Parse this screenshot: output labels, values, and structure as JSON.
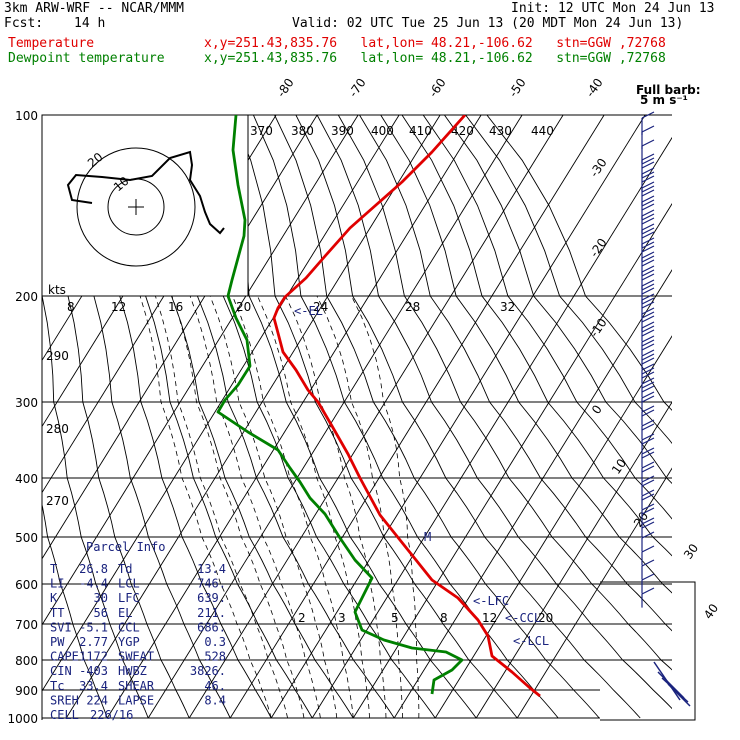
{
  "header": {
    "model": "3km ARW-WRF -- NCAR/MMM",
    "init": "Init: 12 UTC Mon 24 Jun 13",
    "fcst_label": "Fcst:",
    "fcst_value": "14 h",
    "valid": "Valid: 02 UTC Tue 25 Jun 13 (20 MDT Mon 24 Jun 13)",
    "temp_label": "Temperature",
    "dew_label": "Dewpoint temperature",
    "coords": "x,y=251.43,835.76   lat,lon= 48.21,-106.62   stn=GGW ,72768"
  },
  "colors": {
    "temperature": "#e00000",
    "dewpoint": "#008000",
    "annotation": "#1a237e"
  },
  "chart_data": {
    "type": "line",
    "title": "",
    "pressure_labels": [
      "100",
      "200",
      "300",
      "400",
      "500",
      "600",
      "700",
      "800",
      "900",
      "1000"
    ],
    "pressure_levels": [
      100,
      200,
      300,
      400,
      500,
      600,
      700,
      800,
      900,
      1000
    ],
    "isotherm_labels": [
      "-80",
      "-70",
      "-60",
      "-50",
      "-40",
      "-30",
      "-20",
      "-10",
      "0",
      "10",
      "20",
      "30",
      "40"
    ],
    "theta_labels": [
      "370",
      "380",
      "390",
      "400",
      "410",
      "420",
      "430",
      "440"
    ],
    "mixing_ratio_labels": [
      "8",
      "12",
      "16",
      "20",
      "24",
      "28",
      "32"
    ],
    "mixing_ratio_low_labels": [
      "2",
      "3",
      "5",
      "8",
      "12",
      "20"
    ],
    "hodo_labels": [
      "290",
      "280",
      "270"
    ],
    "series": [
      {
        "name": "Temperature",
        "points": [
          [
            100,
            -57
          ],
          [
            150,
            -58
          ],
          [
            200,
            -57
          ],
          [
            250,
            -45
          ],
          [
            300,
            -38
          ],
          [
            400,
            -25
          ],
          [
            500,
            -13
          ],
          [
            600,
            -3
          ],
          [
            700,
            8
          ],
          [
            800,
            15
          ],
          [
            900,
            26.8
          ]
        ]
      },
      {
        "name": "Dewpoint temperature",
        "points": [
          [
            100,
            -80
          ],
          [
            150,
            -79
          ],
          [
            200,
            -77
          ],
          [
            250,
            -72
          ],
          [
            300,
            -66
          ],
          [
            400,
            -37
          ],
          [
            500,
            -25
          ],
          [
            600,
            -12
          ],
          [
            700,
            -9
          ],
          [
            800,
            2
          ],
          [
            900,
            13.4
          ]
        ]
      }
    ],
    "annotations": [
      "<-EL",
      "<-LFC",
      "<-CCL",
      "<-LCL",
      "M"
    ],
    "wind_barb_legend": [
      "Full barb:",
      "5 m s⁻¹"
    ],
    "hodograph_units": "kts",
    "hodograph_ring_labels": [
      "10",
      "20"
    ]
  },
  "parcel_info": {
    "title": "Parcel Info",
    "rows": [
      {
        "k1": "T",
        "v1": "26.8",
        "k2": "Td",
        "v2": "13.4"
      },
      {
        "k1": "LI",
        "v1": "-4.4",
        "k2": "LCL",
        "v2": "746."
      },
      {
        "k1": "K",
        "v1": "30",
        "k2": "LFC",
        "v2": "639."
      },
      {
        "k1": "TT",
        "v1": "56",
        "k2": "EL",
        "v2": "211."
      },
      {
        "k1": "SVI",
        "v1": "-5.1",
        "k2": "CCL",
        "v2": "686."
      },
      {
        "k1": "PW",
        "v1": "2.77",
        "k2": "YGP",
        "v2": "0.3"
      },
      {
        "k1": "CAPE",
        "v1": "1172",
        "k2": "SWEAT",
        "v2": "528"
      },
      {
        "k1": "CIN",
        "v1": "-403",
        "k2": "HWBZ",
        "v2": "3826."
      },
      {
        "k1": "Tc",
        "v1": "33.4",
        "k2": "SHEAR",
        "v2": "46."
      },
      {
        "k1": "SREH",
        "v1": "224",
        "k2": "LAPSE",
        "v2": "8.4"
      },
      {
        "k1": "CELL",
        "v1": "226/16",
        "k2": "",
        "v2": ""
      }
    ]
  }
}
